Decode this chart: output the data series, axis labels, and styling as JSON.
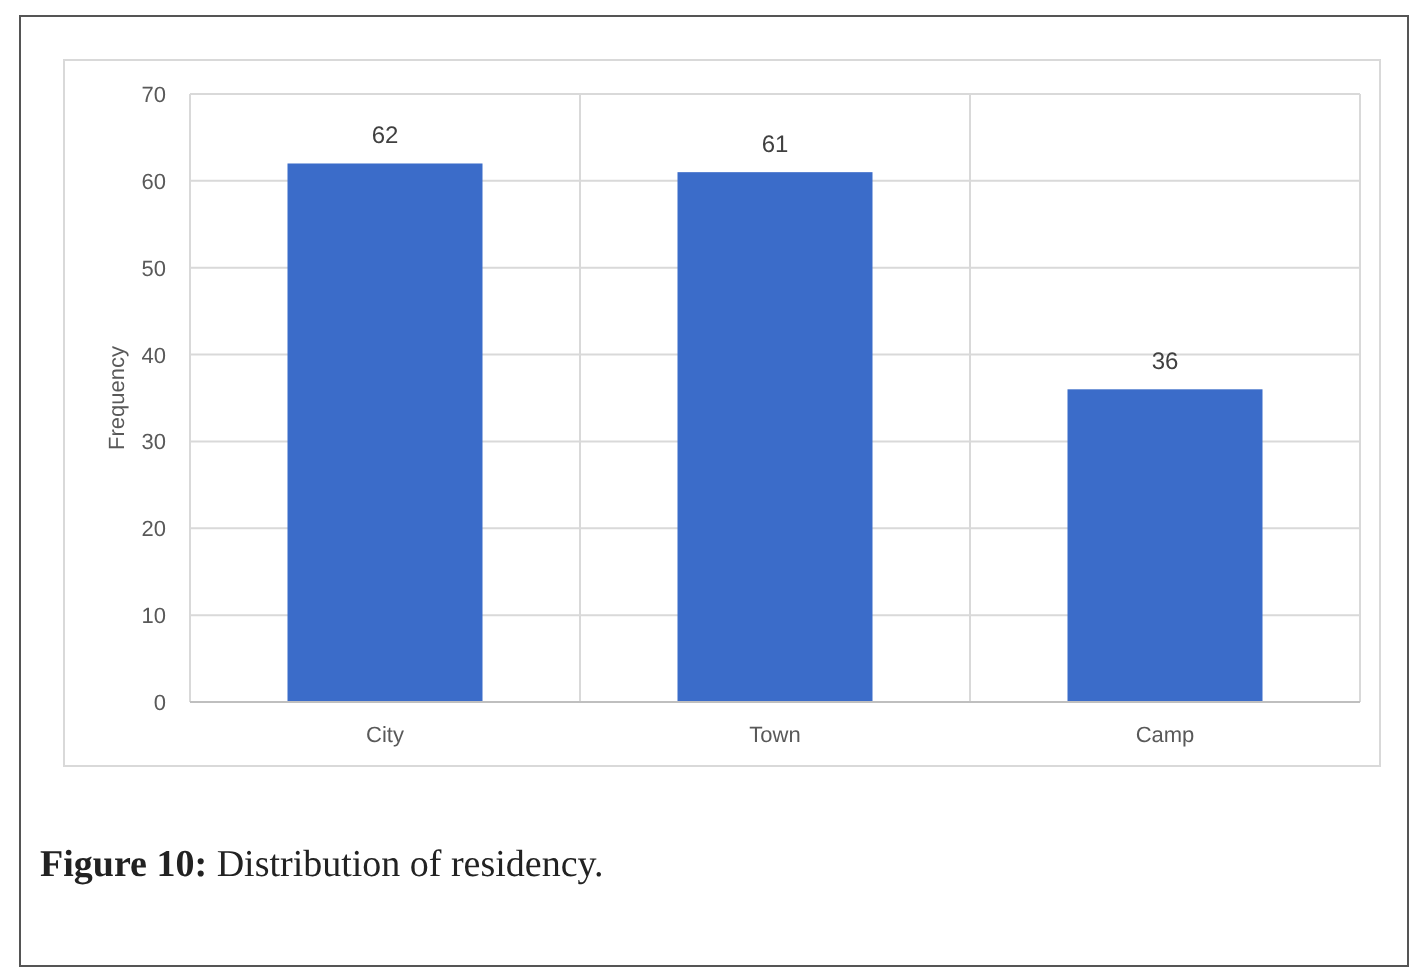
{
  "chart_data": {
    "type": "bar",
    "ylabel": "Frequency",
    "categories": [
      "City",
      "Town",
      "Camp"
    ],
    "values": [
      62,
      61,
      36
    ],
    "color": "#3b6cc9",
    "ylim": [
      0,
      70
    ],
    "yticks": [
      0,
      10,
      20,
      30,
      40,
      50,
      60,
      70
    ],
    "grid": true,
    "data_labels": true,
    "annotations": [
      "Figure 10: Distribution of residency."
    ]
  }
}
